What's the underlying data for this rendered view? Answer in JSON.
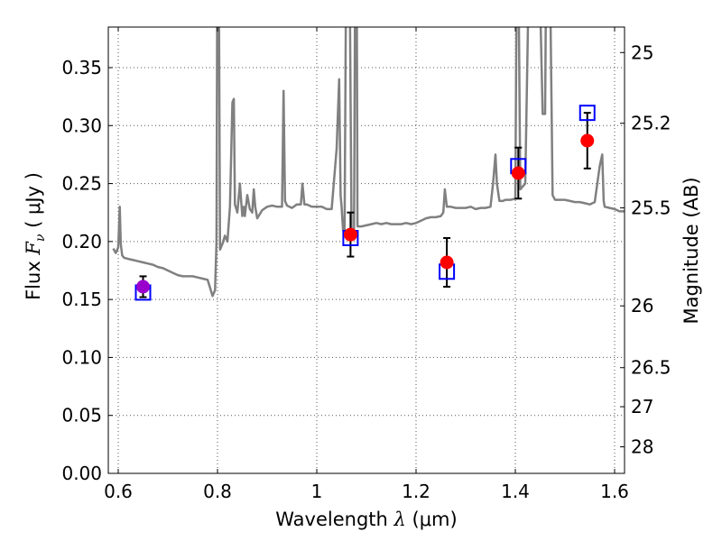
{
  "chart_data": {
    "type": "scatter",
    "xlabel": "Wavelength  λ (μm)",
    "ylabel": "Flux  Fν  ( μJy )",
    "ylabel_parts": {
      "prefix": "Flux  ",
      "symbol": "F",
      "subscript": "ν",
      "suffix": "  ( μJy )"
    },
    "xlabel_parts": {
      "prefix": "Wavelength  ",
      "symbol": "λ",
      "suffix": " (μm)"
    },
    "y2label": "Magnitude (AB)",
    "xlim": [
      0.58,
      1.62
    ],
    "ylim": [
      0.0,
      0.385
    ],
    "grid": true,
    "x_ticks": [
      0.6,
      0.8,
      1.0,
      1.2,
      1.4,
      1.6
    ],
    "x_tick_labels": [
      "0.6",
      "0.8",
      "1",
      "1.2",
      "1.4",
      "1.6"
    ],
    "y_ticks": [
      0.0,
      0.05,
      0.1,
      0.15,
      0.2,
      0.25,
      0.3,
      0.35
    ],
    "y_tick_labels": [
      "0.00",
      "0.05",
      "0.10",
      "0.15",
      "0.20",
      "0.25",
      "0.30",
      "0.35"
    ],
    "y2_ticks": [
      {
        "label": "25",
        "flux": 0.363
      },
      {
        "label": "25.2",
        "flux": 0.302
      },
      {
        "label": "25.5",
        "flux": 0.229
      },
      {
        "label": "26",
        "flux": 0.1445
      },
      {
        "label": "26.5",
        "flux": 0.0912
      },
      {
        "label": "27",
        "flux": 0.0575
      },
      {
        "label": "28",
        "flux": 0.0229
      }
    ],
    "colors": {
      "spectrum": "#808080",
      "model_box": "#0000ff",
      "observed": "#ff0000",
      "observed_special": "#9900cc",
      "errorbar": "#000000",
      "grid": "#555555"
    },
    "series": [
      {
        "name": "model spectrum",
        "type": "line",
        "x": [
          0.59,
          0.595,
          0.6,
          0.603,
          0.605,
          0.608,
          0.612,
          0.62,
          0.63,
          0.64,
          0.65,
          0.66,
          0.67,
          0.68,
          0.69,
          0.7,
          0.71,
          0.72,
          0.73,
          0.74,
          0.75,
          0.76,
          0.77,
          0.78,
          0.785,
          0.79,
          0.795,
          0.798,
          0.8,
          0.802,
          0.805,
          0.81,
          0.815,
          0.82,
          0.825,
          0.83,
          0.833,
          0.835,
          0.838,
          0.84,
          0.845,
          0.848,
          0.85,
          0.853,
          0.855,
          0.86,
          0.865,
          0.87,
          0.873,
          0.876,
          0.88,
          0.89,
          0.9,
          0.91,
          0.92,
          0.93,
          0.933,
          0.936,
          0.94,
          0.95,
          0.96,
          0.968,
          0.971,
          0.975,
          0.98,
          0.99,
          1.0,
          1.01,
          1.02,
          1.03,
          1.04,
          1.045,
          1.048,
          1.05,
          1.053,
          1.056,
          1.06,
          1.065,
          1.07,
          1.075,
          1.078,
          1.08,
          1.082,
          1.085,
          1.09,
          1.1,
          1.11,
          1.12,
          1.13,
          1.14,
          1.15,
          1.16,
          1.17,
          1.18,
          1.19,
          1.2,
          1.21,
          1.22,
          1.23,
          1.24,
          1.25,
          1.255,
          1.258,
          1.262,
          1.27,
          1.28,
          1.29,
          1.3,
          1.31,
          1.32,
          1.33,
          1.34,
          1.35,
          1.355,
          1.36,
          1.363,
          1.368,
          1.375,
          1.38,
          1.39,
          1.4,
          1.403,
          1.406,
          1.41,
          1.42,
          1.43,
          1.435,
          1.438,
          1.44,
          1.445,
          1.455,
          1.46,
          1.463,
          1.468,
          1.475,
          1.48,
          1.49,
          1.5,
          1.51,
          1.52,
          1.53,
          1.54,
          1.55,
          1.56,
          1.57,
          1.575,
          1.578,
          1.58,
          1.59,
          1.6,
          1.61,
          1.62
        ],
        "y": [
          0.194,
          0.19,
          0.195,
          0.23,
          0.198,
          0.188,
          0.186,
          0.185,
          0.184,
          0.183,
          0.182,
          0.181,
          0.18,
          0.178,
          0.177,
          0.175,
          0.173,
          0.171,
          0.17,
          0.17,
          0.17,
          0.169,
          0.168,
          0.167,
          0.16,
          0.153,
          0.158,
          0.2,
          0.5,
          0.5,
          0.193,
          0.198,
          0.205,
          0.2,
          0.23,
          0.32,
          0.323,
          0.232,
          0.228,
          0.225,
          0.25,
          0.233,
          0.222,
          0.23,
          0.222,
          0.24,
          0.228,
          0.225,
          0.245,
          0.23,
          0.22,
          0.227,
          0.23,
          0.231,
          0.23,
          0.23,
          0.33,
          0.235,
          0.231,
          0.229,
          0.232,
          0.232,
          0.25,
          0.232,
          0.232,
          0.23,
          0.23,
          0.23,
          0.228,
          0.228,
          0.28,
          0.34,
          0.24,
          0.23,
          0.21,
          0.21,
          0.5,
          0.5,
          0.21,
          0.211,
          0.5,
          0.5,
          0.213,
          0.213,
          0.213,
          0.214,
          0.215,
          0.216,
          0.215,
          0.216,
          0.215,
          0.215,
          0.215,
          0.216,
          0.215,
          0.216,
          0.218,
          0.22,
          0.221,
          0.221,
          0.222,
          0.225,
          0.245,
          0.23,
          0.23,
          0.229,
          0.229,
          0.229,
          0.23,
          0.228,
          0.229,
          0.229,
          0.23,
          0.25,
          0.275,
          0.25,
          0.235,
          0.235,
          0.236,
          0.236,
          0.237,
          0.45,
          0.45,
          0.245,
          0.25,
          0.5,
          0.5,
          0.5,
          0.5,
          0.5,
          0.31,
          0.31,
          0.5,
          0.5,
          0.24,
          0.236,
          0.236,
          0.236,
          0.235,
          0.234,
          0.234,
          0.233,
          0.232,
          0.234,
          0.265,
          0.275,
          0.235,
          0.23,
          0.229,
          0.228,
          0.226,
          0.226
        ]
      },
      {
        "name": "model bandpass flux",
        "type": "square",
        "x": [
          0.65,
          1.068,
          1.262,
          1.406,
          1.545
        ],
        "y": [
          0.156,
          0.203,
          0.174,
          0.265,
          0.311
        ]
      },
      {
        "name": "observed flux",
        "type": "errorbar",
        "x": [
          0.65,
          1.068,
          1.262,
          1.406,
          1.545
        ],
        "y": [
          0.161,
          0.206,
          0.182,
          0.259,
          0.287
        ],
        "yerr": [
          0.009,
          0.019,
          0.021,
          0.022,
          0.024
        ],
        "colors": [
          "#9900cc",
          "#ff0000",
          "#ff0000",
          "#ff0000",
          "#ff0000"
        ]
      }
    ]
  }
}
